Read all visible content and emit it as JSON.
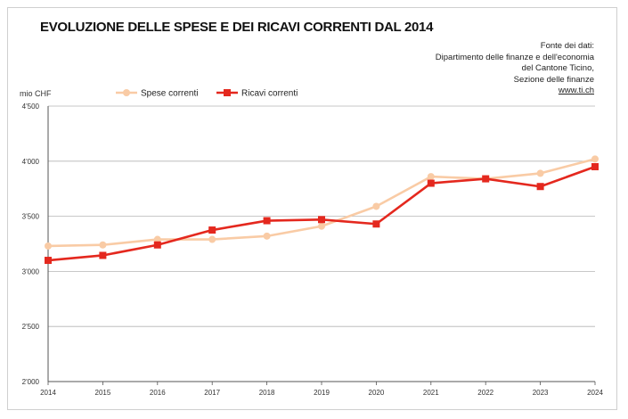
{
  "title": "EVOLUZIONE DELLE SPESE E DEI RICAVI CORRENTI DAL 2014",
  "source": {
    "lines": [
      "Fonte dei dati:",
      "Dipartimento delle finanze e dell'economia",
      "del Cantone Ticino,",
      "Sezione delle finanze"
    ],
    "link": "www.ti.ch"
  },
  "chart_data": {
    "type": "line",
    "ylabel": "mio CHF",
    "xlabel": "",
    "ylim": [
      2000,
      4500
    ],
    "y_ticks": [
      2000,
      2500,
      3000,
      3500,
      4000,
      4500
    ],
    "y_tick_labels": [
      "2'000",
      "2'500",
      "3'000",
      "3'500",
      "4'000",
      "4'500"
    ],
    "x": [
      "2014",
      "2015",
      "2016",
      "2017",
      "2018",
      "2019",
      "2020",
      "2021",
      "2022",
      "2023",
      "2024"
    ],
    "grid": true,
    "legend_position": "top-left",
    "series": [
      {
        "name": "Spese correnti",
        "color": "#f9cba5",
        "marker": "circle",
        "values": [
          3230,
          3240,
          3290,
          3290,
          3320,
          3410,
          3590,
          3860,
          3840,
          3890,
          4020
        ]
      },
      {
        "name": "Ricavi correnti",
        "color": "#e4281e",
        "marker": "square",
        "values": [
          3100,
          3145,
          3240,
          3375,
          3460,
          3470,
          3430,
          3800,
          3840,
          3770,
          3950
        ]
      }
    ]
  }
}
